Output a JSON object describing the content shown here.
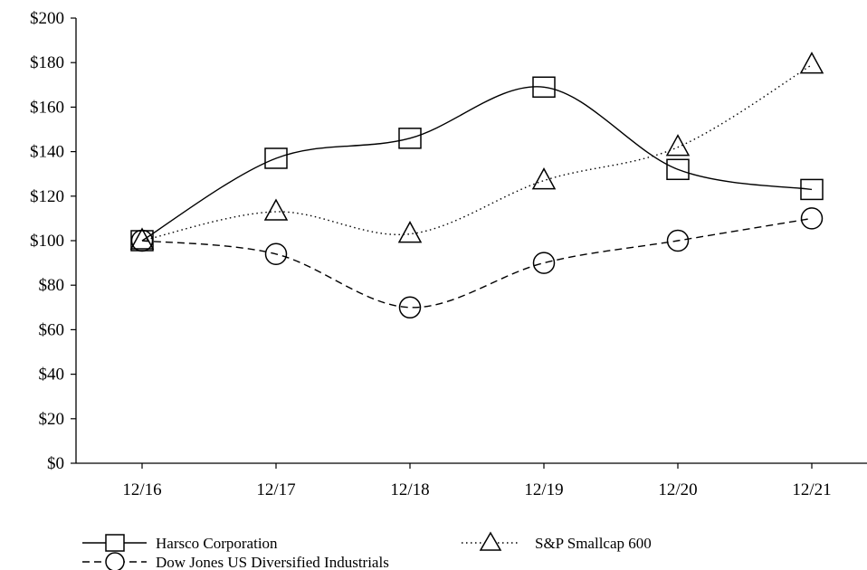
{
  "chart_data": {
    "type": "line",
    "title": "",
    "xlabel": "",
    "ylabel": "",
    "categories": [
      "12/16",
      "12/17",
      "12/18",
      "12/19",
      "12/20",
      "12/21"
    ],
    "yticks": [
      "$0",
      "$20",
      "$40",
      "$60",
      "$80",
      "$100",
      "$120",
      "$140",
      "$160",
      "$180",
      "$200"
    ],
    "ylim": [
      0,
      200
    ],
    "grid": false,
    "legend_position": "bottom",
    "series": [
      {
        "name": "Harsco Corporation",
        "marker": "square",
        "line_style": "solid",
        "values": [
          100,
          137,
          146,
          169,
          132,
          123
        ]
      },
      {
        "name": "S&P Smallcap 600",
        "marker": "triangle",
        "line_style": "dotted",
        "values": [
          100,
          113,
          103,
          127,
          142,
          179
        ]
      },
      {
        "name": "Dow Jones US Diversified Industrials",
        "marker": "circle",
        "line_style": "dashed",
        "values": [
          100,
          94,
          70,
          90,
          100,
          110
        ]
      }
    ]
  }
}
